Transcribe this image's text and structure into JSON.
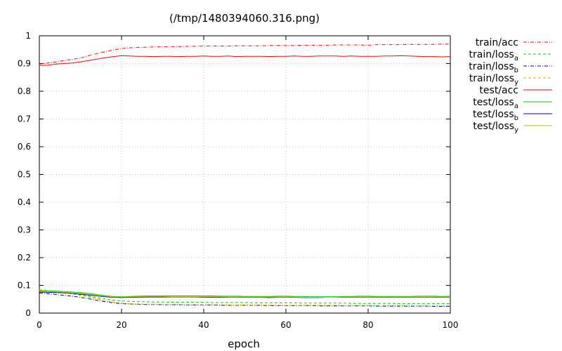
{
  "chart_data": {
    "type": "line",
    "title": "(/tmp/1480394060.316.png)",
    "xlabel": "epoch",
    "ylabel": "",
    "xlim": [
      0,
      100
    ],
    "ylim": [
      0,
      1
    ],
    "x_ticks": [
      "0",
      "20",
      "40",
      "60",
      "80",
      "100"
    ],
    "y_ticks": [
      "0",
      "0.1",
      "0.2",
      "0.3",
      "0.4",
      "0.5",
      "0.6",
      "0.7",
      "0.8",
      "0.9",
      "1"
    ],
    "grid": true,
    "legend_position": "right",
    "x": [
      0,
      2,
      4,
      6,
      8,
      10,
      12,
      14,
      16,
      18,
      20,
      22,
      24,
      26,
      28,
      30,
      32,
      34,
      36,
      38,
      40,
      42,
      44,
      46,
      48,
      50,
      52,
      54,
      56,
      58,
      60,
      62,
      64,
      66,
      68,
      70,
      72,
      74,
      76,
      78,
      80,
      82,
      84,
      86,
      88,
      90,
      92,
      94,
      96,
      98,
      100
    ],
    "series": [
      {
        "name": "train/acc",
        "label_main": "train/acc",
        "label_sub": "",
        "color": "#ff0000",
        "dash": "dashdot",
        "values": [
          0.898,
          0.902,
          0.906,
          0.911,
          0.915,
          0.92,
          0.928,
          0.936,
          0.943,
          0.949,
          0.954,
          0.957,
          0.958,
          0.959,
          0.96,
          0.96,
          0.961,
          0.961,
          0.962,
          0.962,
          0.963,
          0.963,
          0.963,
          0.963,
          0.964,
          0.964,
          0.964,
          0.964,
          0.965,
          0.965,
          0.965,
          0.965,
          0.966,
          0.966,
          0.966,
          0.966,
          0.967,
          0.967,
          0.967,
          0.967,
          0.966,
          0.968,
          0.968,
          0.968,
          0.968,
          0.969,
          0.969,
          0.969,
          0.969,
          0.97,
          0.97
        ]
      },
      {
        "name": "train/loss_a",
        "label_main": "train/loss",
        "label_sub": "a",
        "color": "#00cc00",
        "dash": "dashed",
        "values": [
          0.082,
          0.079,
          0.076,
          0.073,
          0.07,
          0.066,
          0.061,
          0.056,
          0.051,
          0.047,
          0.044,
          0.042,
          0.041,
          0.041,
          0.04,
          0.04,
          0.039,
          0.039,
          0.039,
          0.039,
          0.039,
          0.038,
          0.038,
          0.038,
          0.038,
          0.038,
          0.037,
          0.037,
          0.037,
          0.037,
          0.037,
          0.037,
          0.036,
          0.036,
          0.036,
          0.036,
          0.036,
          0.036,
          0.035,
          0.035,
          0.035,
          0.035,
          0.035,
          0.035,
          0.034,
          0.034,
          0.034,
          0.034,
          0.034,
          0.034,
          0.034
        ]
      },
      {
        "name": "train/loss_b",
        "label_main": "train/loss",
        "label_sub": "b",
        "color": "#000099",
        "dash": "dashdot",
        "values": [
          0.073,
          0.07,
          0.067,
          0.064,
          0.061,
          0.057,
          0.052,
          0.046,
          0.041,
          0.037,
          0.034,
          0.033,
          0.032,
          0.031,
          0.031,
          0.03,
          0.03,
          0.03,
          0.029,
          0.029,
          0.029,
          0.029,
          0.028,
          0.028,
          0.028,
          0.028,
          0.028,
          0.028,
          0.027,
          0.027,
          0.027,
          0.027,
          0.027,
          0.027,
          0.026,
          0.026,
          0.026,
          0.026,
          0.026,
          0.026,
          0.026,
          0.025,
          0.025,
          0.025,
          0.025,
          0.025,
          0.025,
          0.025,
          0.024,
          0.024,
          0.024
        ]
      },
      {
        "name": "train/loss_y",
        "label_main": "train/loss",
        "label_sub": "y",
        "color": "#ddaa00",
        "dash": "dashed",
        "values": [
          0.085,
          0.081,
          0.077,
          0.073,
          0.069,
          0.064,
          0.058,
          0.051,
          0.045,
          0.04,
          0.036,
          0.034,
          0.033,
          0.032,
          0.032,
          0.031,
          0.031,
          0.031,
          0.03,
          0.03,
          0.03,
          0.03,
          0.03,
          0.029,
          0.029,
          0.029,
          0.029,
          0.029,
          0.029,
          0.028,
          0.028,
          0.028,
          0.028,
          0.028,
          0.028,
          0.028,
          0.028,
          0.027,
          0.027,
          0.027,
          0.027,
          0.027,
          0.027,
          0.027,
          0.027,
          0.027,
          0.026,
          0.026,
          0.026,
          0.026,
          0.026
        ]
      },
      {
        "name": "test/acc",
        "label_main": "test/acc",
        "label_sub": "",
        "color": "#ff0000",
        "dash": "solid",
        "values": [
          0.893,
          0.894,
          0.898,
          0.9,
          0.902,
          0.906,
          0.911,
          0.916,
          0.921,
          0.925,
          0.928,
          0.927,
          0.926,
          0.926,
          0.925,
          0.926,
          0.926,
          0.925,
          0.926,
          0.926,
          0.927,
          0.926,
          0.926,
          0.927,
          0.925,
          0.926,
          0.926,
          0.926,
          0.925,
          0.926,
          0.926,
          0.927,
          0.926,
          0.926,
          0.927,
          0.927,
          0.927,
          0.926,
          0.927,
          0.926,
          0.926,
          0.926,
          0.927,
          0.927,
          0.928,
          0.927,
          0.926,
          0.925,
          0.925,
          0.924,
          0.925
        ]
      },
      {
        "name": "test/loss_a",
        "label_main": "test/loss",
        "label_sub": "a",
        "color": "#00cc00",
        "dash": "solid",
        "values": [
          0.081,
          0.08,
          0.079,
          0.078,
          0.076,
          0.074,
          0.071,
          0.067,
          0.063,
          0.06,
          0.059,
          0.06,
          0.061,
          0.062,
          0.062,
          0.062,
          0.062,
          0.062,
          0.062,
          0.062,
          0.062,
          0.062,
          0.061,
          0.061,
          0.061,
          0.06,
          0.06,
          0.06,
          0.06,
          0.061,
          0.061,
          0.06,
          0.06,
          0.059,
          0.059,
          0.059,
          0.059,
          0.06,
          0.06,
          0.061,
          0.061,
          0.06,
          0.06,
          0.06,
          0.06,
          0.06,
          0.061,
          0.061,
          0.061,
          0.06,
          0.061
        ]
      },
      {
        "name": "test/loss_b",
        "label_main": "test/loss",
        "label_sub": "b",
        "color": "#000099",
        "dash": "solid",
        "values": [
          0.076,
          0.075,
          0.074,
          0.073,
          0.071,
          0.068,
          0.065,
          0.062,
          0.059,
          0.057,
          0.056,
          0.057,
          0.057,
          0.058,
          0.058,
          0.058,
          0.058,
          0.058,
          0.058,
          0.058,
          0.057,
          0.057,
          0.057,
          0.057,
          0.057,
          0.057,
          0.057,
          0.057,
          0.056,
          0.057,
          0.057,
          0.057,
          0.056,
          0.056,
          0.056,
          0.057,
          0.057,
          0.057,
          0.057,
          0.057,
          0.057,
          0.057,
          0.057,
          0.057,
          0.057,
          0.057,
          0.057,
          0.057,
          0.057,
          0.057,
          0.057
        ]
      },
      {
        "name": "test/loss_y",
        "label_main": "test/loss",
        "label_sub": "y",
        "color": "#aacc00",
        "dash": "solid",
        "values": [
          0.079,
          0.078,
          0.077,
          0.075,
          0.073,
          0.071,
          0.068,
          0.064,
          0.061,
          0.059,
          0.058,
          0.059,
          0.059,
          0.06,
          0.06,
          0.06,
          0.059,
          0.059,
          0.059,
          0.059,
          0.059,
          0.059,
          0.059,
          0.058,
          0.058,
          0.058,
          0.058,
          0.058,
          0.058,
          0.058,
          0.058,
          0.058,
          0.057,
          0.057,
          0.057,
          0.057,
          0.057,
          0.058,
          0.058,
          0.058,
          0.058,
          0.058,
          0.058,
          0.058,
          0.058,
          0.058,
          0.058,
          0.058,
          0.058,
          0.058,
          0.058
        ]
      }
    ]
  }
}
